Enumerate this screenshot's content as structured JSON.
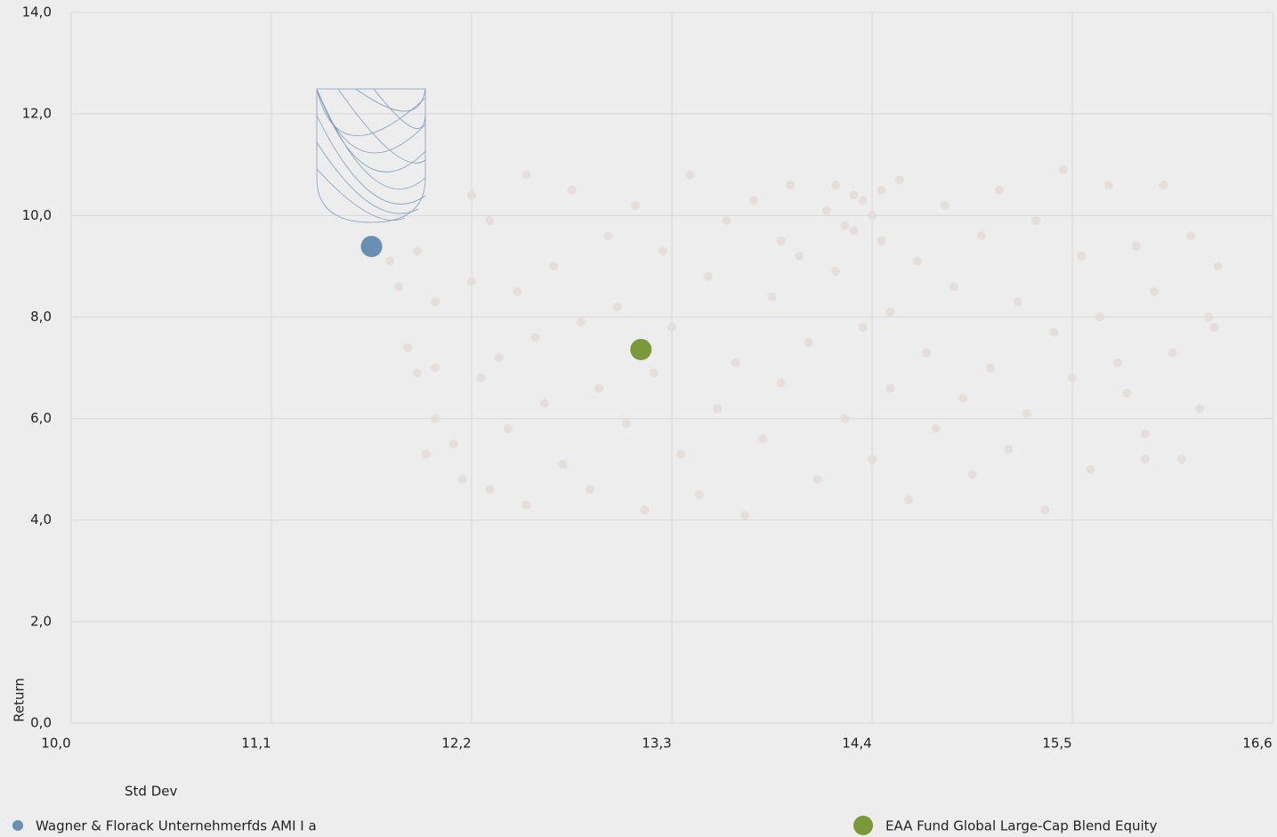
{
  "chart_data": {
    "type": "scatter",
    "x_label": "Std Dev",
    "y_label": "Return",
    "xlim": [
      10.0,
      16.6
    ],
    "ylim": [
      0,
      14
    ],
    "xticks": [
      {
        "value": 10.0,
        "label": "10,0"
      },
      {
        "value": 11.1,
        "label": "11,1"
      },
      {
        "value": 12.2,
        "label": "12,2"
      },
      {
        "value": 13.3,
        "label": "13,3"
      },
      {
        "value": 14.4,
        "label": "14,4"
      },
      {
        "value": 15.5,
        "label": "15,5"
      },
      {
        "value": 16.6,
        "label": "16,6"
      }
    ],
    "yticks": [
      {
        "value": 0,
        "label": "0,0"
      },
      {
        "value": 2,
        "label": "2,0"
      },
      {
        "value": 4,
        "label": "4,0"
      },
      {
        "value": 6,
        "label": "6,0"
      },
      {
        "value": 8,
        "label": "8,0"
      },
      {
        "value": 10,
        "label": "10,0"
      },
      {
        "value": 12,
        "label": "12,0"
      },
      {
        "value": 14,
        "label": "14,0"
      }
    ],
    "grid": true,
    "series": [
      {
        "color": "#e3dcd8",
        "x": [
          11.75,
          11.8,
          11.85,
          11.9,
          11.95,
          12.0,
          12.0,
          11.9,
          12.1,
          12.15,
          12.2,
          12.2,
          12.25,
          12.3,
          12.35,
          12.4,
          12.45,
          12.5,
          12.5,
          12.55,
          12.6,
          12.65,
          12.7,
          12.75,
          12.8,
          12.85,
          12.9,
          12.95,
          13.0,
          13.05,
          13.1,
          13.15,
          13.2,
          13.25,
          13.3,
          13.35,
          13.4,
          13.45,
          13.5,
          13.55,
          13.6,
          13.65,
          13.7,
          13.75,
          13.8,
          13.85,
          13.9,
          13.95,
          14.0,
          14.05,
          14.1,
          14.15,
          14.2,
          14.25,
          14.3,
          14.3,
          14.35,
          14.4,
          14.4,
          14.45,
          14.5,
          14.5,
          14.55,
          14.6,
          14.65,
          14.7,
          14.75,
          14.8,
          14.85,
          14.9,
          14.95,
          15.0,
          15.05,
          15.1,
          15.15,
          15.2,
          15.25,
          15.3,
          15.35,
          15.4,
          15.45,
          15.5,
          15.55,
          15.6,
          15.65,
          15.7,
          15.75,
          15.8,
          15.85,
          15.9,
          15.95,
          16.0,
          16.05,
          16.1,
          16.15,
          16.2,
          16.25,
          16.3,
          16.28,
          14.2,
          14.35,
          14.45,
          14.25,
          13.9,
          12.0,
          12.3,
          15.9
        ],
        "values": [
          9.1,
          8.6,
          7.4,
          6.9,
          5.3,
          8.3,
          6.0,
          9.3,
          5.5,
          4.8,
          10.4,
          8.7,
          6.8,
          4.6,
          7.2,
          5.8,
          8.5,
          4.3,
          10.8,
          7.6,
          6.3,
          9.0,
          5.1,
          10.5,
          7.9,
          4.6,
          6.6,
          9.6,
          8.2,
          5.9,
          10.2,
          4.2,
          6.9,
          9.3,
          7.8,
          5.3,
          10.8,
          4.5,
          8.8,
          6.2,
          9.9,
          7.1,
          4.1,
          10.3,
          5.6,
          8.4,
          6.7,
          10.6,
          9.2,
          7.5,
          4.8,
          10.1,
          8.9,
          6.0,
          10.4,
          9.7,
          7.8,
          10.0,
          5.2,
          9.5,
          8.1,
          6.6,
          10.7,
          4.4,
          9.1,
          7.3,
          5.8,
          10.2,
          8.6,
          6.4,
          4.9,
          9.6,
          7.0,
          10.5,
          5.4,
          8.3,
          6.1,
          9.9,
          4.2,
          7.7,
          10.9,
          6.8,
          9.2,
          5.0,
          8.0,
          10.6,
          7.1,
          6.5,
          9.4,
          5.7,
          8.5,
          10.6,
          7.3,
          5.2,
          9.6,
          6.2,
          8.0,
          9.0,
          7.8,
          10.6,
          10.3,
          10.5,
          9.8,
          9.5,
          7.0,
          9.9,
          5.2
        ]
      },
      {
        "name": "Wagner & Florack Unternehmerfds AMI I a",
        "color": "#6a8fb5",
        "x": [
          11.65
        ],
        "values": [
          9.39
        ]
      },
      {
        "name": "EAA Fund Global Large-Cap Blend Equity",
        "color": "#7a9a3a",
        "x": [
          13.13
        ],
        "values": [
          7.36
        ]
      }
    ]
  }
}
